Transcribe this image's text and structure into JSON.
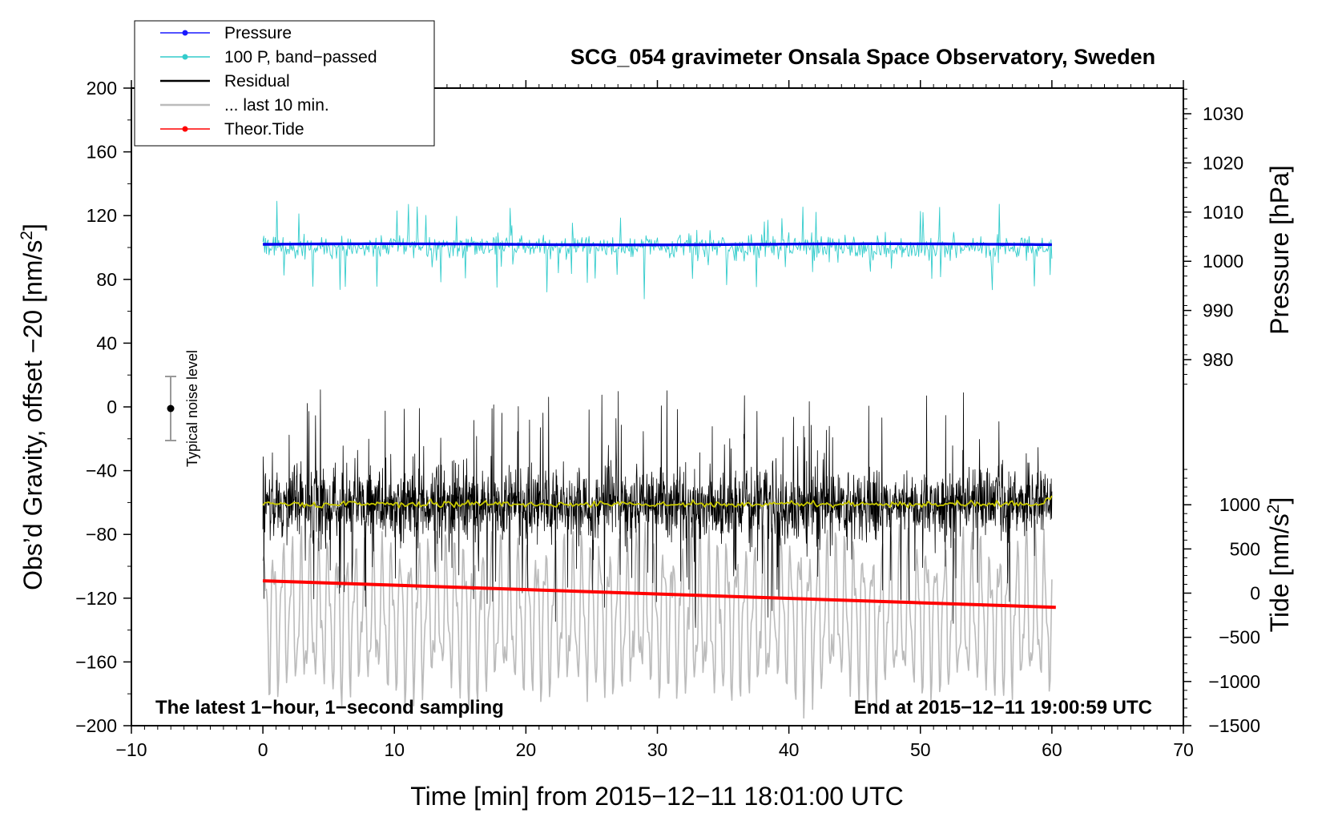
{
  "chart_data": {
    "type": "line",
    "title": "SCG_054 gravimeter Onsala Space Observatory, Sweden",
    "xlabel": "Time [min] from 2015−12−11 18:01:00 UTC",
    "ylabel_left": "Obs’d Gravity, offset −20 [nm/s",
    "ylabel_left_sup": "2",
    "ylabel_left_end": "]",
    "ylabel_right_pressure": "Pressure [hPa]",
    "ylabel_right_tide": "Tide [nm/s",
    "ylabel_right_tide_sup": "2",
    "ylabel_right_tide_end": "]",
    "xlim": [
      -10,
      70
    ],
    "ylim_left": [
      -200,
      200
    ],
    "pressure_range": [
      975,
      1035
    ],
    "tide_range": [
      -1500,
      1500
    ],
    "x_ticks": [
      -10,
      0,
      10,
      20,
      30,
      40,
      50,
      60,
      70
    ],
    "x_tick_labels": [
      "−10",
      "0",
      "10",
      "20",
      "30",
      "40",
      "50",
      "60",
      "70"
    ],
    "y_left_ticks": [
      200,
      160,
      120,
      80,
      40,
      0,
      -40,
      -80,
      -120,
      -160,
      -200
    ],
    "y_left_tick_labels": [
      "200",
      "160",
      "120",
      "80",
      "40",
      "0",
      "−40",
      "−80",
      "−120",
      "−160",
      "−200"
    ],
    "pressure_ticks": [
      1030,
      1020,
      1010,
      1000,
      990,
      980
    ],
    "pressure_tick_labels": [
      "1030",
      "1020",
      "1010",
      "1000",
      "990",
      "980"
    ],
    "tide_ticks": [
      1000,
      500,
      0,
      -500,
      -1000,
      -1500
    ],
    "tide_tick_labels": [
      "1000",
      "500",
      "0",
      "−500",
      "−1000",
      "−1500"
    ],
    "annotation_left": "The latest 1−hour, 1−second sampling",
    "annotation_right": "End at 2015−12−11 19:00:59 UTC",
    "noise_bar": {
      "x": -7,
      "center": 0,
      "half_range": 20,
      "label": "Typical noise level"
    },
    "legend": [
      {
        "label": "Pressure",
        "color": "#1a1aff",
        "marker": true
      },
      {
        "label": "100 P, band−passed",
        "color": "#33cccc",
        "marker": true
      },
      {
        "label": "Residual",
        "color": "#000000",
        "marker": false
      },
      {
        "label": "... last 10 min.",
        "color": "#bbbbbb",
        "marker": false
      },
      {
        "label": "Theor.Tide",
        "color": "#ff0000",
        "marker": true
      }
    ],
    "series": [
      {
        "name": "Pressure",
        "axis": "left",
        "color": "#0000ee",
        "x_range": [
          0,
          60
        ],
        "approx_level": 102
      },
      {
        "name": "100 P, band−passed",
        "axis": "left",
        "color": "#33cccc",
        "x_range": [
          0,
          60
        ],
        "approx_level": 100,
        "approx_spread": 40
      },
      {
        "name": "Residual",
        "axis": "left",
        "color": "#000000",
        "x_range": [
          0,
          60
        ],
        "approx_level": -61,
        "approx_spread": 75
      },
      {
        "name": "Residual smoothed",
        "axis": "left",
        "color": "#c8c800",
        "x_range": [
          0,
          60
        ],
        "approx_level": -61
      },
      {
        "name": "... last 10 min.",
        "axis": "left",
        "color": "#bbbbbb",
        "x_range": [
          0,
          60
        ],
        "approx_level": -130,
        "approx_spread": 55
      },
      {
        "name": "Theor.Tide",
        "axis": "tide",
        "color": "#ff0000",
        "x": [
          0,
          60.3
        ],
        "values": [
          140,
          -160
        ]
      }
    ]
  }
}
